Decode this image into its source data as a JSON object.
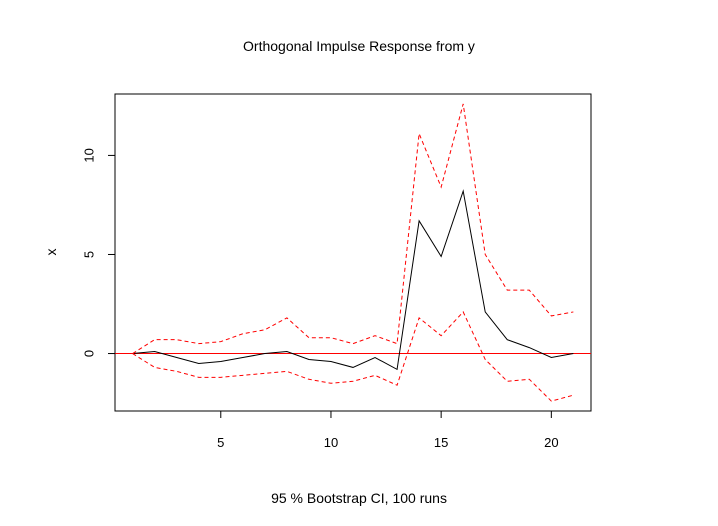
{
  "chart_data": {
    "type": "line",
    "title": "Orthogonal Impulse Response from y",
    "xlabel": "95 % Bootstrap CI,  100 runs",
    "ylabel": "x",
    "xlim": [
      0.2,
      21.8
    ],
    "ylim": [
      -2.9,
      13.1
    ],
    "x_ticks": [
      5,
      10,
      15,
      20
    ],
    "y_ticks": [
      0,
      5,
      10
    ],
    "grid": false,
    "legend": "none",
    "zero_line_color": "#ff0000",
    "x": [
      1,
      2,
      3,
      4,
      5,
      6,
      7,
      8,
      9,
      10,
      11,
      12,
      13,
      14,
      15,
      16,
      17,
      18,
      19,
      20,
      21
    ],
    "series": [
      {
        "role": "response",
        "color": "#000000",
        "style": "solid",
        "values": [
          0.0,
          0.1,
          -0.2,
          -0.5,
          -0.4,
          -0.2,
          0.0,
          0.1,
          -0.3,
          -0.4,
          -0.7,
          -0.2,
          -0.8,
          6.7,
          4.9,
          8.2,
          2.1,
          0.7,
          0.3,
          -0.2,
          0.0
        ]
      },
      {
        "role": "upper",
        "color": "#ff0000",
        "style": "dashed",
        "values": [
          0.0,
          0.7,
          0.7,
          0.5,
          0.6,
          1.0,
          1.2,
          1.8,
          0.8,
          0.8,
          0.5,
          0.9,
          0.5,
          11.1,
          8.4,
          12.6,
          5.0,
          3.2,
          3.2,
          1.9,
          2.1
        ]
      },
      {
        "role": "lower",
        "color": "#ff0000",
        "style": "dashed",
        "values": [
          0.0,
          -0.7,
          -0.9,
          -1.2,
          -1.2,
          -1.1,
          -1.0,
          -0.9,
          -1.3,
          -1.5,
          -1.4,
          -1.1,
          -1.6,
          1.8,
          0.9,
          2.1,
          -0.3,
          -1.4,
          -1.3,
          -2.4,
          -2.1
        ]
      }
    ]
  }
}
